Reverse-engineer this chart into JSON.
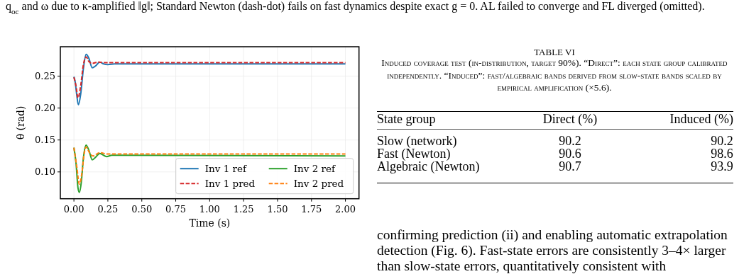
{
  "chart_data": [
    {
      "type": "other",
      "annotations": [
        "q$_{oc}$ and ω due to κ-amplified ‖g‖; Standard Newton (dash-dot) fails on fast dynamics despite exact g = 0. AL failed to converge and FL diverged (omitted)."
      ]
    },
    {
      "type": "line",
      "xlabel": "Time (s)",
      "ylabel": "θ (rad)",
      "xlim": [
        -0.1,
        2.1
      ],
      "ylim": [
        0.058,
        0.296
      ],
      "xticks": [
        {
          "value": 0,
          "label": "0.00"
        },
        {
          "value": 0.25,
          "label": "0.25"
        },
        {
          "value": 0.5,
          "label": "0.50"
        },
        {
          "value": 0.75,
          "label": "0.75"
        },
        {
          "value": 1,
          "label": "1.00"
        },
        {
          "value": 1.25,
          "label": "1.25"
        },
        {
          "value": 1.5,
          "label": "1.50"
        },
        {
          "value": 1.75,
          "label": "1.75"
        },
        {
          "value": 2,
          "label": "2.00"
        }
      ],
      "yticks": [
        {
          "value": 0.1,
          "label": "0.10"
        },
        {
          "value": 0.15,
          "label": "0.15"
        },
        {
          "value": 0.2,
          "label": "0.20"
        },
        {
          "value": 0.25,
          "label": "0.25"
        }
      ],
      "grid": true,
      "legend": "bottom right",
      "series": [
        {
          "name": "Inv 1 ref",
          "color": "#1f77b4",
          "line_style": "solid",
          "x": [
            0,
            0.01,
            0.02,
            0.033,
            0.05,
            0.07,
            0.09,
            0.11,
            0.135,
            0.16,
            0.19,
            0.22,
            0.25,
            0.3,
            2.0
          ],
          "values": [
            0.249,
            0.24,
            0.222,
            0.205,
            0.222,
            0.262,
            0.284,
            0.278,
            0.263,
            0.266,
            0.272,
            0.269,
            0.268,
            0.269,
            0.269
          ]
        },
        {
          "name": "Inv 1 pred",
          "color": "#d62728",
          "line_style": "dashed",
          "x": [
            0,
            0.015,
            0.03,
            0.05,
            0.07,
            0.09,
            0.11,
            0.135,
            0.18,
            0.22,
            2.0
          ],
          "values": [
            0.248,
            0.235,
            0.216,
            0.235,
            0.268,
            0.28,
            0.273,
            0.27,
            0.272,
            0.271,
            0.271
          ]
        },
        {
          "name": "Inv 2 ref",
          "color": "#2ca02c",
          "line_style": "solid",
          "x": [
            0,
            0.015,
            0.03,
            0.04,
            0.055,
            0.07,
            0.09,
            0.11,
            0.135,
            0.16,
            0.19,
            0.24,
            0.28,
            2.0
          ],
          "values": [
            0.138,
            0.115,
            0.075,
            0.068,
            0.085,
            0.122,
            0.142,
            0.134,
            0.119,
            0.123,
            0.129,
            0.124,
            0.126,
            0.125
          ]
        },
        {
          "name": "Inv 2 pred",
          "color": "#ff7f0e",
          "line_style": "dashed",
          "x": [
            0,
            0.02,
            0.04,
            0.06,
            0.075,
            0.09,
            0.115,
            0.14,
            0.19,
            0.25,
            2.0
          ],
          "values": [
            0.138,
            0.11,
            0.081,
            0.1,
            0.128,
            0.139,
            0.13,
            0.125,
            0.13,
            0.128,
            0.128
          ]
        }
      ]
    },
    {
      "type": "other",
      "title": "TABLE VI",
      "subtitle": "Induced coverage test (in-distribution, target 90%). “Direct”: each state group calibrated independently. “Induced”: fast/algebraic bands derived from slow-state bands scaled by empirical amplification (×5.6).",
      "ylabel": "State group",
      "categories": [
        "Direct (%)",
        "Induced (%)"
      ],
      "y_categories": [
        "Slow (network)",
        "Fast (Newton)",
        "Algebraic (Newton)"
      ],
      "annotations": [
        "90.2",
        "90.2",
        "90.6",
        "98.6",
        "90.7",
        "93.9"
      ]
    },
    {
      "type": "other",
      "annotations": [
        "confirming prediction (ii) and enabling automatic extrapolation detection (Fig. 6). Fast-state errors are consistently 3–4× larger than slow-state errors, quantitatively consistent with"
      ]
    }
  ]
}
